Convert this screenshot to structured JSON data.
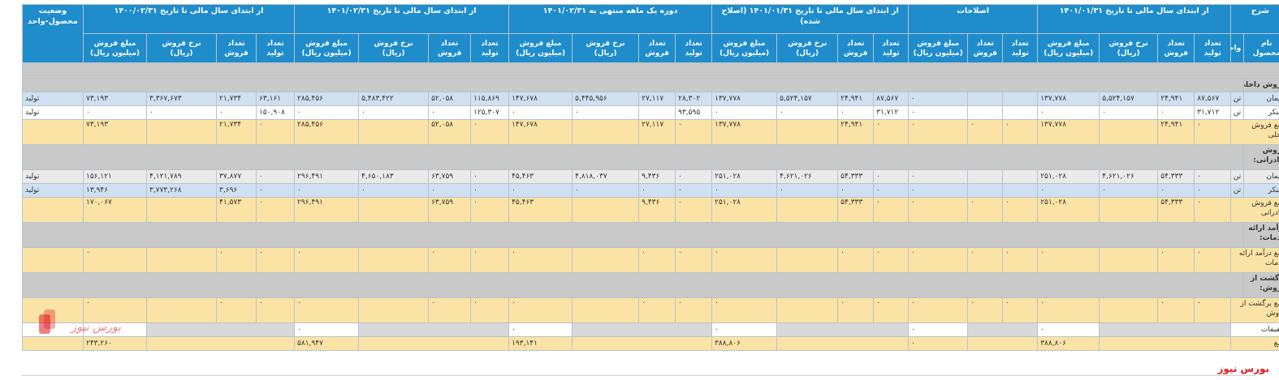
{
  "headers": {
    "desc": "شرح",
    "period1": "از ابتدای سال مالی تا تاریخ ۱۴۰۱/۰۱/۳۱",
    "corrections": "اصلاحات",
    "period1_corrected": "از ابتدای سال مالی تا تاریخ ۱۴۰۱/۰۱/۳۱ (اصلاح شده)",
    "month_period": "دوره یک ماهه منتهی به ۱۴۰۱/۰۲/۳۱",
    "period2": "از ابتدای سال مالی تا تاریخ ۱۴۰۱/۰۲/۳۱",
    "period3": "از ابتدای سال مالی تا تاریخ ۱۴۰۰/۰۲/۳۱",
    "status": "وضعیت محصول-واحد",
    "product_name": "نام محصول",
    "unit": "واحد",
    "prod_qty": "تعداد تولید",
    "sale_qty": "تعداد فروش",
    "sale_rate": "نرخ فروش (ریال)",
    "sale_amount": "مبلغ فروش (میلیون ریال)"
  },
  "rows": {
    "domestic_title": "فروش داخلی:",
    "cement_name": "سیمان",
    "clinker_name": "کلینکر",
    "unit_ton": "تن",
    "status_prod": "تولید",
    "domestic_total": "جمع فروش داخلی",
    "export_title": "فروش صادراتی:",
    "export_total": "جمع فروش صادراتی",
    "services_title": "درآمد ارائه خدمات:",
    "services_total": "جمع درآمد ارائه خدمات",
    "returns_title": "برگشت از فروش:",
    "returns_total": "جمع برگشت از فروش",
    "discounts": "تخفیفات",
    "grand_total": "جمع"
  },
  "values": {
    "zero": "۰",
    "d_cement": [
      "۸۷,۵۶۷",
      "۲۴,۹۴۱",
      "۵,۵۲۴,۱۵۷",
      "۱۳۷,۷۷۸",
      "۸۷,۵۶۷",
      "۲۴,۹۴۱",
      "۵,۵۲۴,۱۵۷",
      "۱۳۷,۷۷۸",
      "۲۸,۳۰۲",
      "۲۷,۱۱۷",
      "۵,۴۴۵,۹۵۶",
      "۱۴۷,۶۷۸",
      "۱۱۵,۸۶۹",
      "۵۲,۰۵۸",
      "۵,۴۸۳,۴۲۲",
      "۲۸۵,۴۵۶",
      "۶۳,۱۶۱",
      "۲۱,۷۳۴",
      "۳,۳۶۷,۶۷۳",
      "۷۳,۱۹۳"
    ],
    "d_clinker": [
      "۳۱,۷۱۲",
      "۳۱,۷۱۲",
      "۹۳,۵۹۵",
      "۱۲۵,۳۰۷",
      "۱۵۰,۹۰۸"
    ],
    "d_total": [
      "۱۳۷,۷۷۸",
      "۲۴,۹۴۱",
      "۱۳۷,۷۷۸",
      "۲۷,۱۱۷",
      "۱۴۷,۶۷۸",
      "۵۲,۰۵۸",
      "۲۸۵,۴۵۶",
      "۲۱,۷۳۴",
      "۷۳,۱۹۳"
    ],
    "e_cement": [
      "۵۴,۳۳۳",
      "۴,۶۲۱,۰۲۶",
      "۲۵۱,۰۲۸",
      "۵۴,۳۳۳",
      "۴,۶۲۱,۰۲۶",
      "۲۵۱,۰۲۸",
      "۹,۴۳۶",
      "۴,۸۱۸,۰۳۷",
      "۴۵,۴۶۳",
      "۶۳,۷۵۹",
      "۴,۶۵۰,۱۸۳",
      "۲۹۶,۴۹۱",
      "۳۷,۸۷۷",
      "۴,۱۲۱,۷۸۹",
      "۱۵۶,۱۲۱"
    ],
    "e_clinker": [
      "۳,۶۹۶",
      "۳,۷۷۳,۲۶۸",
      "۱۳,۹۴۶"
    ],
    "e_total": [
      "۵۴,۳۳۳",
      "۲۵۱,۰۲۸",
      "۵۴,۳۳۳",
      "۲۵۱,۰۲۸",
      "۹,۴۳۶",
      "۴۵,۴۶۳",
      "۶۳,۷۵۹",
      "۲۹۶,۴۹۱",
      "۴۱,۵۷۳",
      "۱۷۰,۰۶۷"
    ],
    "grand": [
      "۳۸۸,۸۰۶",
      "۳۸۸,۸۰۶",
      "۱۹۳,۱۴۱",
      "۵۸۱,۹۴۷",
      "۲۴۳,۲۶۰"
    ]
  },
  "logo_text": "بورس نیوز",
  "footer_brand": "بورس نیوز",
  "colors": {
    "header": "#1f8dcc",
    "total_row": "#fbe3a5",
    "blue_row": "#cfe0f2",
    "section": "#c9c9c9",
    "brand": "#e0161d"
  }
}
